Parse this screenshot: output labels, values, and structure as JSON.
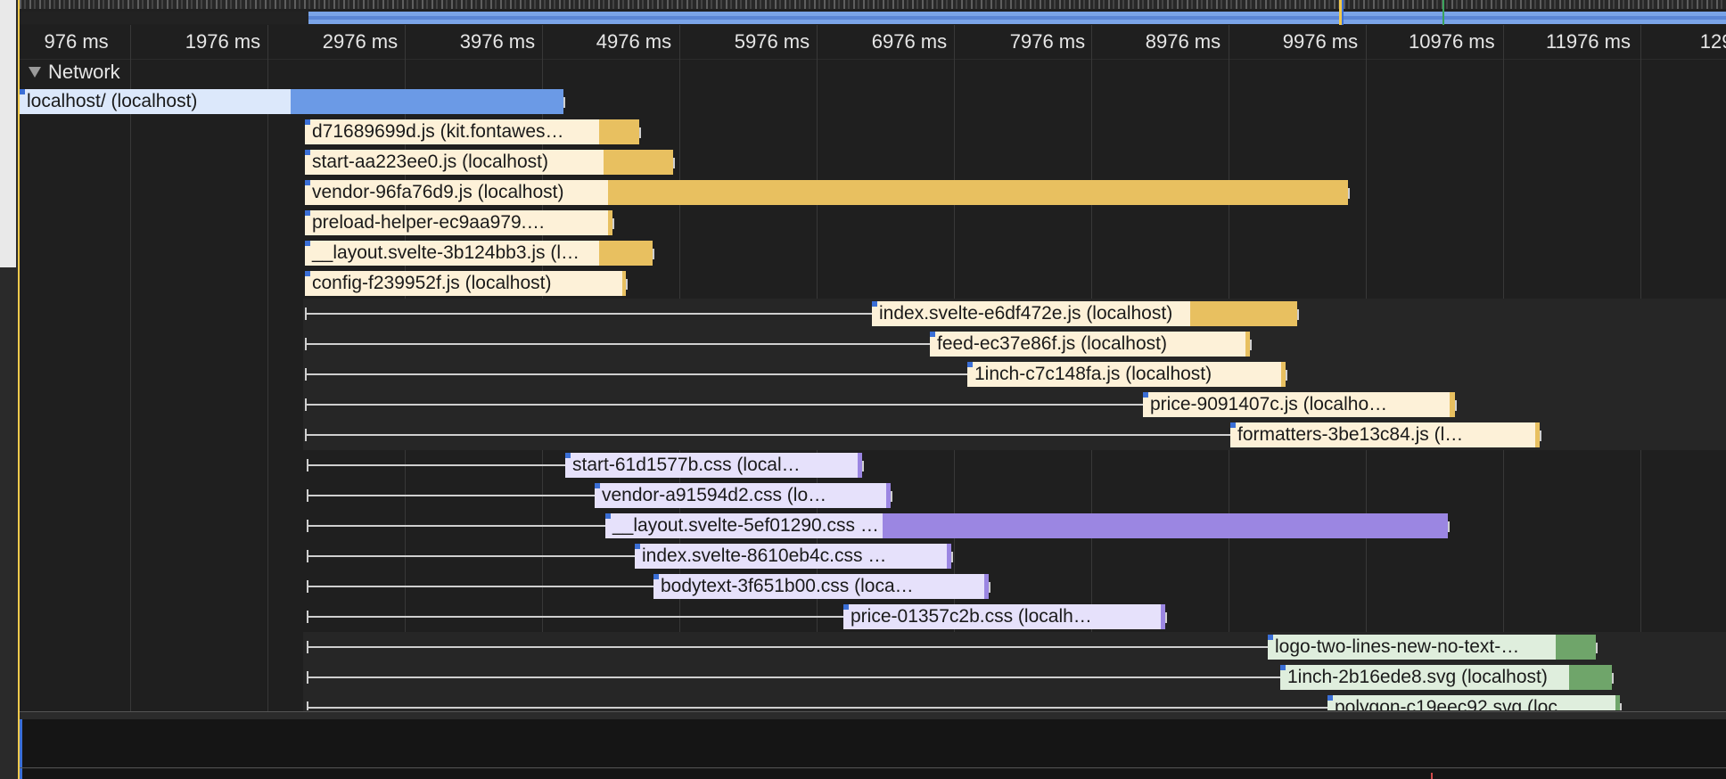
{
  "overview": {
    "label": ""
  },
  "ruler": {
    "ticks": [
      "976 ms",
      "1976 ms",
      "2976 ms",
      "3976 ms",
      "4976 ms",
      "5976 ms",
      "6976 ms",
      "7976 ms",
      "8976 ms",
      "9976 ms",
      "10976 ms",
      "11976 ms",
      "129"
    ]
  },
  "track": {
    "title": "Network"
  },
  "colors": {
    "document": "#6b9ae6",
    "document_light": "#dce8fb",
    "script": "#e8c060",
    "script_light": "#fdf1d8",
    "stylesheet": "#9b86e2",
    "stylesheet_light": "#e6e1fb",
    "image": "#6fa56a",
    "image_light": "#dfeedd"
  },
  "requests": [
    {
      "label": "localhost/ (localhost)",
      "type": "document",
      "start": 0,
      "download": 304,
      "end": 610
    },
    {
      "label": "d71689699d.js (kit.fontawes…",
      "type": "script",
      "start": 320,
      "download": 650,
      "end": 695
    },
    {
      "label": "start-aa223ee0.js (localhost)",
      "type": "script",
      "start": 320,
      "download": 655,
      "end": 733
    },
    {
      "label": "vendor-96fa76d9.js (localhost)",
      "type": "script",
      "start": 320,
      "download": 660,
      "end": 1490
    },
    {
      "label": "preload-helper-ec9aa979.…",
      "type": "script",
      "start": 320,
      "download": 660,
      "end": 665
    },
    {
      "label": "__layout.svelte-3b124bb3.js (l…",
      "type": "script",
      "start": 320,
      "download": 650,
      "end": 710
    },
    {
      "label": "config-f239952f.js (localhost)",
      "type": "script",
      "start": 320,
      "download": 676,
      "end": 680
    },
    {
      "label": "index.svelte-e6df472e.js (localhost)",
      "type": "script",
      "wait": 320,
      "start": 956,
      "download": 1313,
      "end": 1433
    },
    {
      "label": "feed-ec37e86f.js (localhost)",
      "type": "script",
      "wait": 320,
      "start": 1021,
      "download": 1375,
      "end": 1380
    },
    {
      "label": "1inch-c7c148fa.js (localhost)",
      "type": "script",
      "wait": 320,
      "start": 1063,
      "download": 1415,
      "end": 1420
    },
    {
      "label": "price-9091407c.js (localho…",
      "type": "script",
      "wait": 320,
      "start": 1260,
      "download": 1604,
      "end": 1610
    },
    {
      "label": "formatters-3be13c84.js (l…",
      "type": "script",
      "wait": 320,
      "start": 1358,
      "download": 1700,
      "end": 1705
    },
    {
      "label": "start-61d1577b.css (local…",
      "type": "stylesheet",
      "wait": 322,
      "start": 612,
      "download": 940,
      "end": 945
    },
    {
      "label": "vendor-a91594d2.css (lo…",
      "type": "stylesheet",
      "wait": 322,
      "start": 645,
      "download": 972,
      "end": 977
    },
    {
      "label": "__layout.svelte-5ef01290.css (localhost)",
      "type": "stylesheet",
      "wait": 322,
      "start": 657,
      "download": 968,
      "end": 1602
    },
    {
      "label": "index.svelte-8610eb4c.css …",
      "type": "stylesheet",
      "wait": 322,
      "start": 690,
      "download": 1040,
      "end": 1045
    },
    {
      "label": "bodytext-3f651b00.css (loca…",
      "type": "stylesheet",
      "wait": 322,
      "start": 711,
      "download": 1082,
      "end": 1087
    },
    {
      "label": "price-01357c2b.css (localh…",
      "type": "stylesheet",
      "wait": 322,
      "start": 924,
      "download": 1280,
      "end": 1285
    },
    {
      "label": "logo-two-lines-new-no-text-…",
      "type": "image",
      "wait": 322,
      "start": 1400,
      "download": 1723,
      "end": 1768
    },
    {
      "label": "1inch-2b16ede8.svg (localhost)",
      "type": "image",
      "wait": 322,
      "start": 1414,
      "download": 1738,
      "end": 1786
    },
    {
      "label": "polygon-c19eec92.svg (loc…",
      "type": "image",
      "wait": 322,
      "start": 1467,
      "download": 1790,
      "end": 1795
    }
  ],
  "footer": {
    "more_label": "…"
  }
}
